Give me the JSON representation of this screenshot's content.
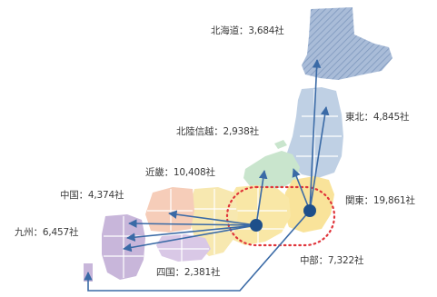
{
  "regions": [
    {
      "id": "hokkaido",
      "name": "北海道",
      "count": "3,684社",
      "color": "#9fb3cf"
    },
    {
      "id": "tohoku",
      "name": "東北",
      "count": "4,845社",
      "color": "#bfd0e4"
    },
    {
      "id": "hokuriku",
      "name": "北陸信越",
      "count": "2,938社",
      "color": "#c9e5cd"
    },
    {
      "id": "kinki",
      "name": "近畿",
      "count": "10,408社",
      "color": "#f7e8b0"
    },
    {
      "id": "chugoku",
      "name": "中国",
      "count": "4,374社",
      "color": "#f6cdb9"
    },
    {
      "id": "kyushu",
      "name": "九州",
      "count": "6,457社",
      "color": "#c8b6da"
    },
    {
      "id": "shikoku",
      "name": "四国",
      "count": "2,381社",
      "color": "#d9c8e6"
    },
    {
      "id": "chubu",
      "name": "中部",
      "count": "7,322社",
      "color": "#f9e7a6"
    },
    {
      "id": "kanto",
      "name": "関東",
      "count": "19,861社",
      "color": "#f9e39a"
    }
  ],
  "separator": "：",
  "colors": {
    "arrow": "#3a6aa6",
    "hub": "#1e4f8a",
    "highlight": "#e0343a",
    "hatch": "#7e98bd"
  }
}
